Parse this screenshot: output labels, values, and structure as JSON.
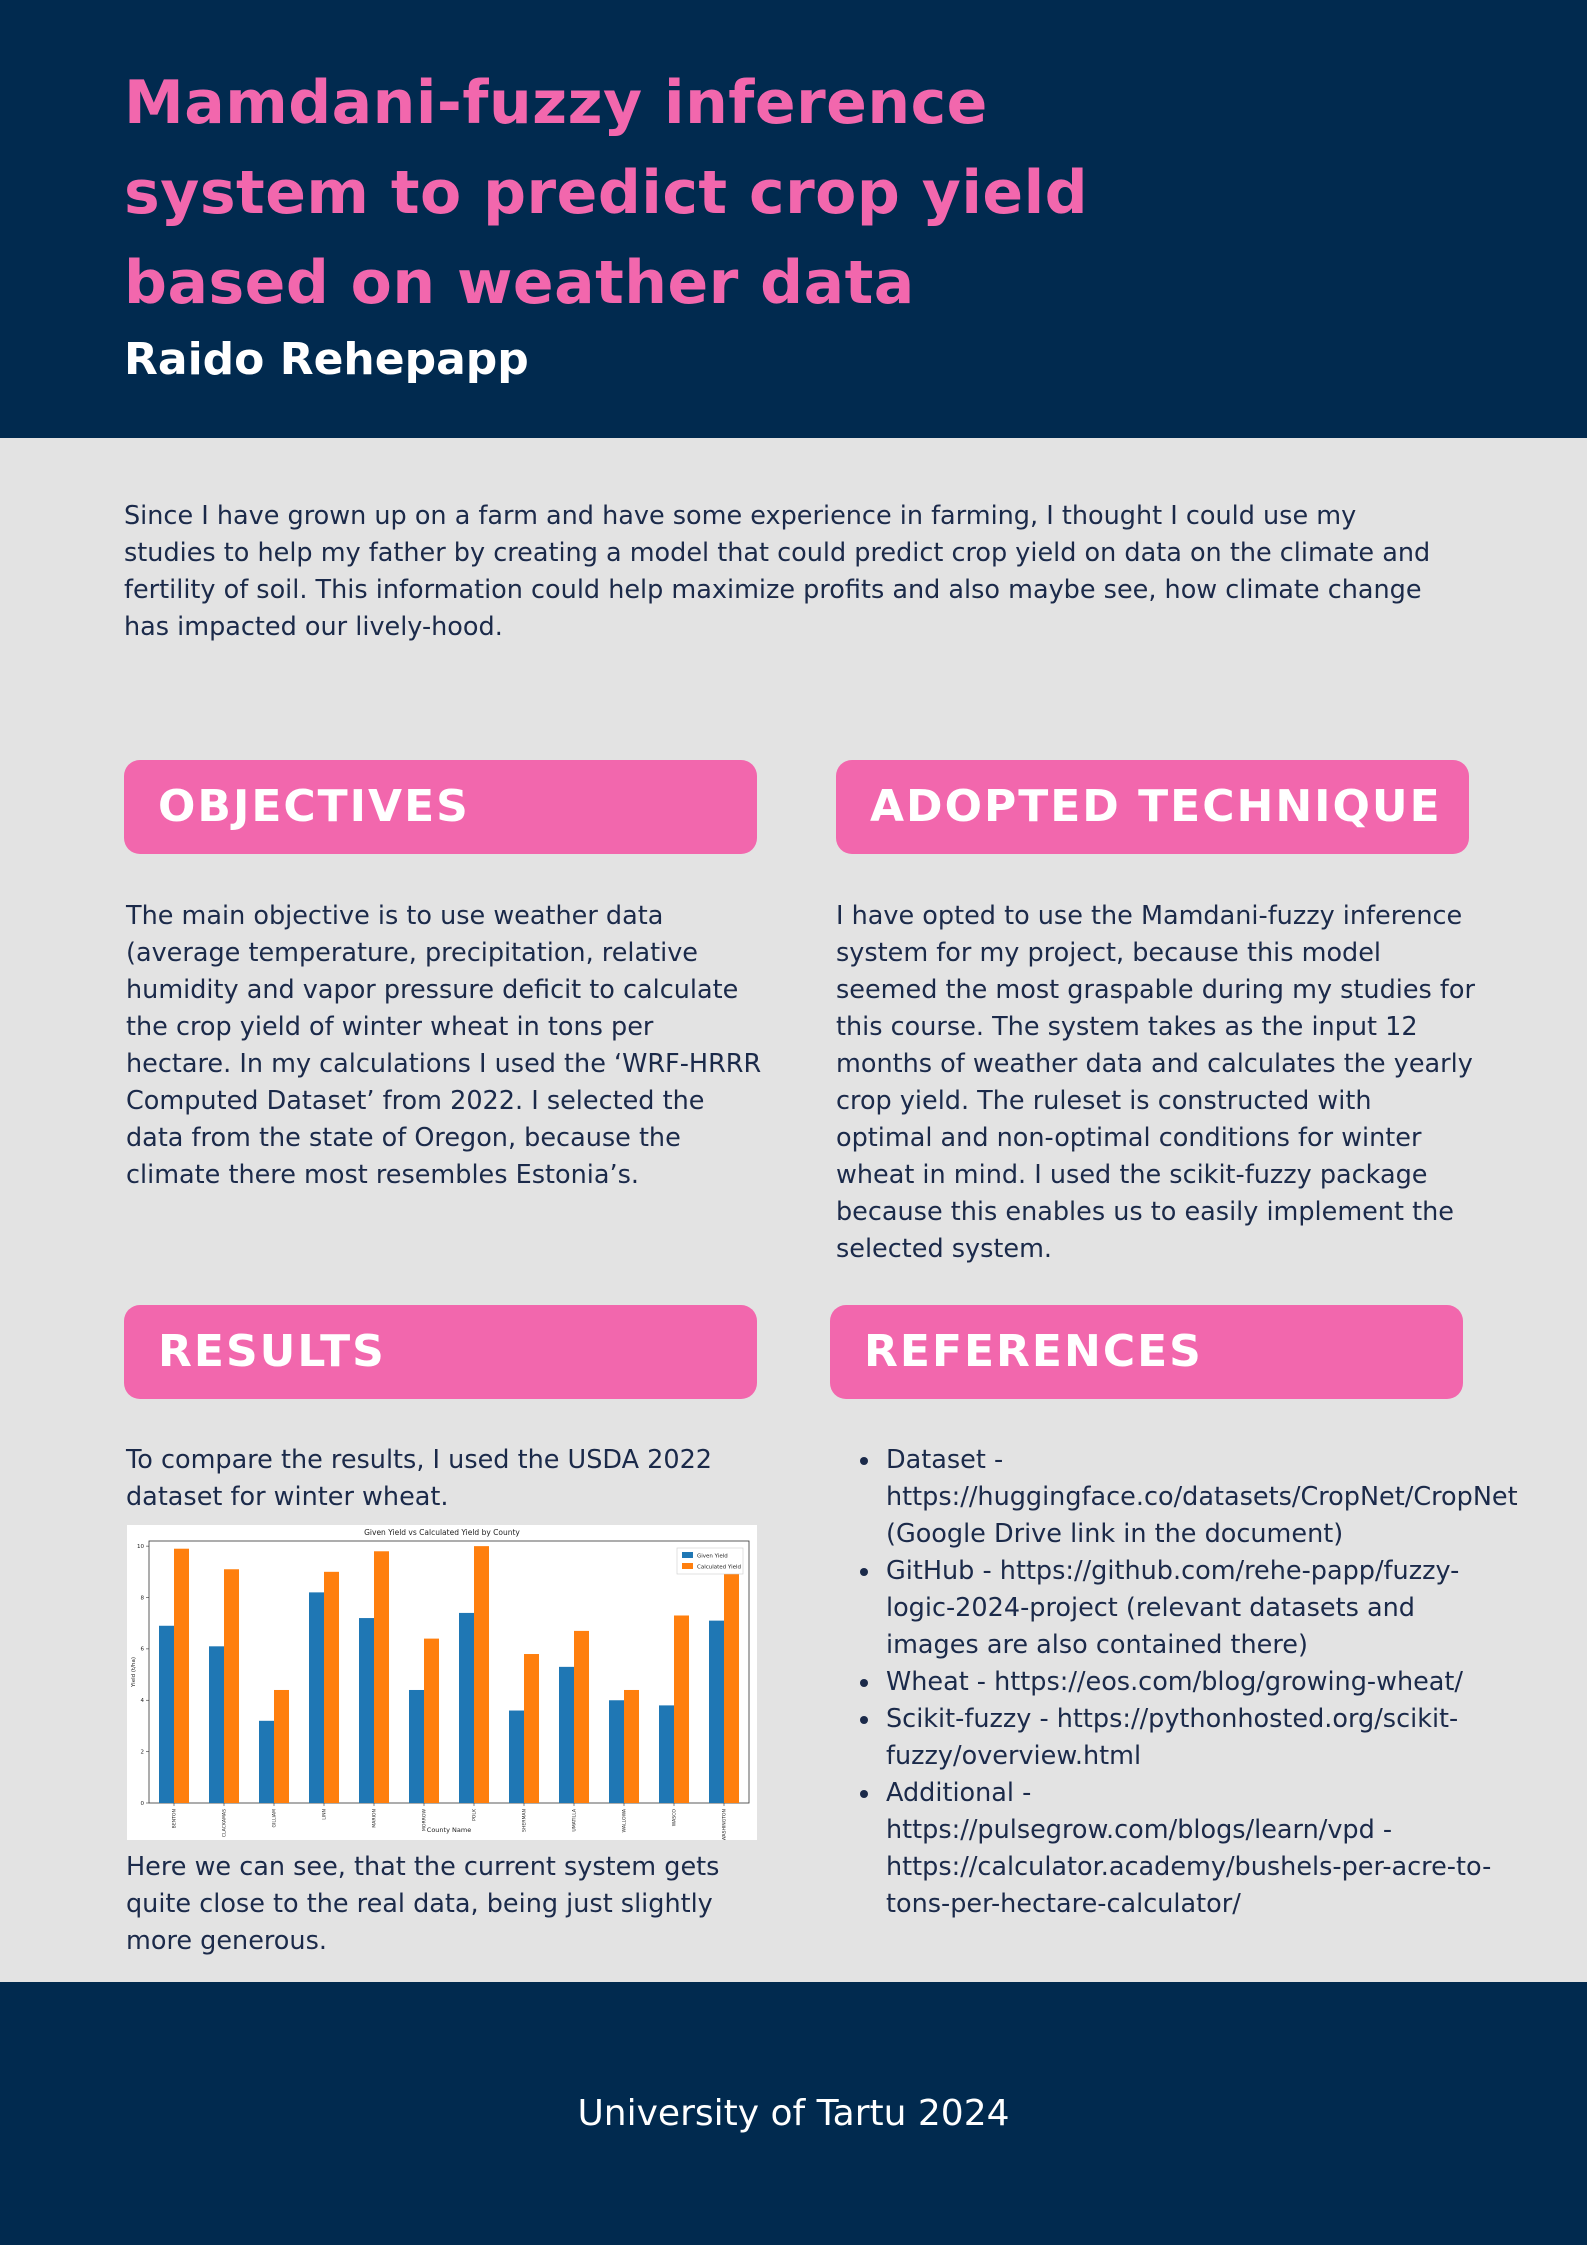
{
  "header": {
    "title": "Mamdani-fuzzy inference system to predict crop yield based on weather data",
    "author": "Raido Rehepapp"
  },
  "intro": "Since I have grown up on a farm and have some experience in farming, I thought I could use my studies to help my father by creating a model that could predict crop yield on data on the climate and fertility of soil. This information could help maximize profits and also maybe see, how climate change has impacted our lively-hood.",
  "objectives": {
    "heading": "OBJECTIVES",
    "text": "The main objective is to use weather data (average temperature, precipitation, relative humidity and vapor pressure deficit to calculate the crop yield of winter wheat in tons per hectare. In my calculations I used the ‘WRF-HRRR  Computed Dataset’ from 2022. I selected the data from the state of Oregon, because the climate there most resembles Estonia’s."
  },
  "technique": {
    "heading": "ADOPTED TECHNIQUE",
    "text": "I have opted to use the Mamdani-fuzzy inference system for my project, because this model seemed the most graspable during my studies for this course. The system takes as the input 12 months of weather data and calculates the yearly crop yield. The ruleset is constructed with optimal and non-optimal conditions for winter wheat in mind. I used the scikit-fuzzy package because this enables us to easily implement the selected system."
  },
  "results": {
    "heading": "RESULTS",
    "text_before": "To compare the results, I used the USDA 2022 dataset for winter wheat.",
    "text_after": "Here we can see, that the current system gets quite close to the real data, being just slightly more generous."
  },
  "references": {
    "heading": "REFERENCES",
    "items": [
      "Dataset - https://huggingface.co/datasets/CropNet/CropNet (Google Drive link in the document)",
      "GitHub - https://github.com/rehe-papp/fuzzy-logic-2024-project (relevant datasets and images are also contained there)",
      "Wheat - https://eos.com/blog/growing-wheat/",
      "Scikit-fuzzy - https://pythonhosted.org/scikit-fuzzy/overview.html",
      "Additional - https://pulsegrow.com/blogs/learn/vpd - https://calculator.academy/bushels-per-acre-to-tons-per-hectare-calculator/"
    ]
  },
  "footer": {
    "text": "University of Tartu 2024"
  },
  "colors": {
    "navy": "#012a4f",
    "pink": "#f267ad",
    "given": "#1f77b4",
    "calculated": "#ff7f0e"
  },
  "chart_data": {
    "type": "bar",
    "title": "Given Yield vs Calculated Yield by County",
    "xlabel": "County Name",
    "ylabel": "Yield (t/ha)",
    "categories": [
      "BENTON",
      "CLACKAMAS",
      "GILLIAM",
      "LINN",
      "MARION",
      "MORROW",
      "POLK",
      "SHERMAN",
      "UMATILLA",
      "WALLOWA",
      "WASCO",
      "WASHINGTON"
    ],
    "series": [
      {
        "name": "Given Yield",
        "values": [
          6.9,
          6.1,
          3.2,
          8.2,
          7.2,
          4.4,
          7.4,
          3.6,
          5.3,
          4.0,
          3.8,
          7.1
        ]
      },
      {
        "name": "Calculated Yield",
        "values": [
          9.9,
          9.1,
          4.4,
          9.0,
          9.8,
          6.4,
          10.0,
          5.8,
          6.7,
          4.4,
          7.3,
          9.3
        ]
      }
    ],
    "yticks": [
      "0",
      "2",
      "4",
      "6",
      "8",
      "10"
    ],
    "ylim": [
      0,
      10.2
    ],
    "legend": "top-right",
    "grid": false
  }
}
